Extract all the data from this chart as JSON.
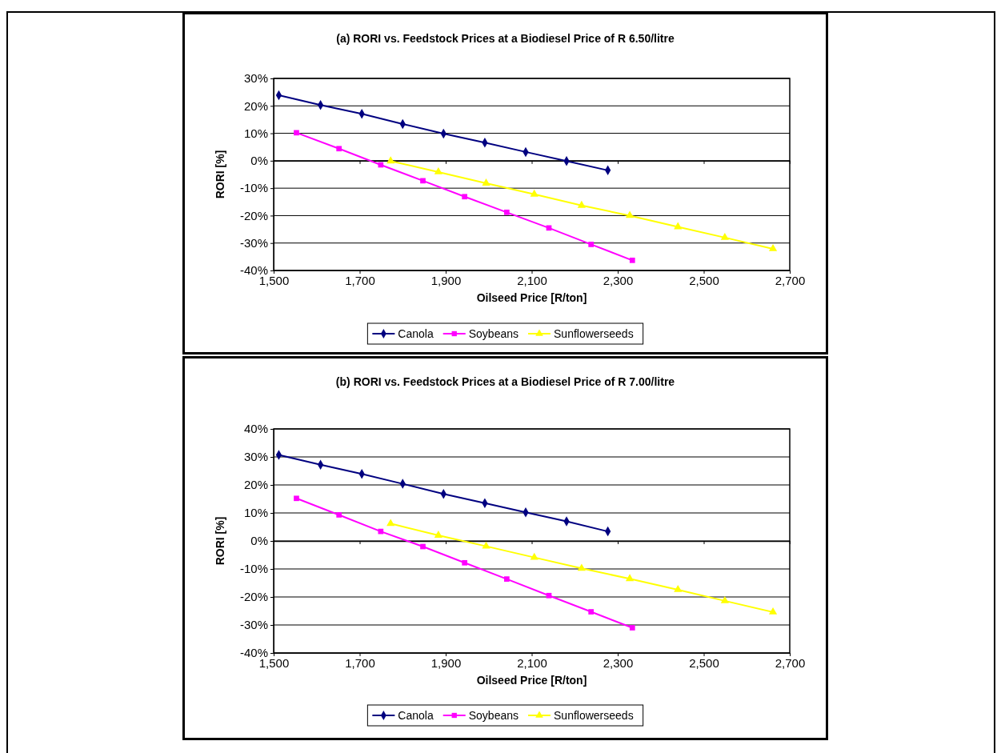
{
  "chart_data": [
    {
      "type": "line",
      "title": "(a) RORI vs. Feedstock Prices at a Biodiesel Price of R 6.50/litre",
      "xlabel": "Oilseed Price [R/ton]",
      "ylabel": "RORI [%]",
      "xlim": [
        1500,
        2700
      ],
      "xticks": [
        {
          "value": 1500,
          "label": "1,500"
        },
        {
          "value": 1700,
          "label": "1,700"
        },
        {
          "value": 1900,
          "label": "1,900"
        },
        {
          "value": 2100,
          "label": "2,100"
        },
        {
          "value": 2300,
          "label": "2,300"
        },
        {
          "value": 2500,
          "label": "2,500"
        },
        {
          "value": 2700,
          "label": "2,700"
        }
      ],
      "ylim": [
        -40,
        30
      ],
      "yticks": [
        {
          "value": -40,
          "label": "-40%"
        },
        {
          "value": -30,
          "label": "-30%"
        },
        {
          "value": -20,
          "label": "-20%"
        },
        {
          "value": -10,
          "label": "-10%"
        },
        {
          "value": 0,
          "label": "0%"
        },
        {
          "value": 10,
          "label": "10%"
        },
        {
          "value": 20,
          "label": "20%"
        },
        {
          "value": 30,
          "label": "30%"
        }
      ],
      "grid": "y",
      "legend": "bottom",
      "series": [
        {
          "name": "Canola",
          "color": "#000080",
          "marker": "diamond",
          "x": [
            1512,
            1609,
            1705,
            1800,
            1895,
            1991,
            2086,
            2181,
            2277
          ],
          "values": [
            23.9,
            20.3,
            17.1,
            13.4,
            9.9,
            6.6,
            3.2,
            -0.1,
            -3.5
          ]
        },
        {
          "name": "Soybeans",
          "color": "#ff00ff",
          "marker": "square",
          "x": [
            1553,
            1652,
            1749,
            1847,
            1944,
            2042,
            2140,
            2238,
            2334
          ],
          "values": [
            10.2,
            4.4,
            -1.5,
            -7.3,
            -13.1,
            -18.8,
            -24.5,
            -30.5,
            -36.3
          ]
        },
        {
          "name": "Sunflowerseeds",
          "color": "#ffff00",
          "marker": "triangle",
          "x": [
            1772,
            1883,
            1994,
            2106,
            2216,
            2328,
            2440,
            2549,
            2661
          ],
          "values": [
            -0.1,
            -4.1,
            -8.2,
            -12.2,
            -16.3,
            -20.0,
            -24.1,
            -28.0,
            -32.1
          ]
        }
      ]
    },
    {
      "type": "line",
      "title": "(b) RORI vs. Feedstock Prices at a Biodiesel Price of R 7.00/litre",
      "xlabel": "Oilseed Price [R/ton]",
      "ylabel": "RORI [%]",
      "xlim": [
        1500,
        2700
      ],
      "xticks": [
        {
          "value": 1500,
          "label": "1,500"
        },
        {
          "value": 1700,
          "label": "1,700"
        },
        {
          "value": 1900,
          "label": "1,900"
        },
        {
          "value": 2100,
          "label": "2,100"
        },
        {
          "value": 2300,
          "label": "2,300"
        },
        {
          "value": 2500,
          "label": "2,500"
        },
        {
          "value": 2700,
          "label": "2,700"
        }
      ],
      "ylim": [
        -40,
        40
      ],
      "yticks": [
        {
          "value": -40,
          "label": "-40%"
        },
        {
          "value": -30,
          "label": "-30%"
        },
        {
          "value": -20,
          "label": "-20%"
        },
        {
          "value": -10,
          "label": "-10%"
        },
        {
          "value": 0,
          "label": "0%"
        },
        {
          "value": 10,
          "label": "10%"
        },
        {
          "value": 20,
          "label": "20%"
        },
        {
          "value": 30,
          "label": "30%"
        },
        {
          "value": 40,
          "label": "40%"
        }
      ],
      "grid": "y",
      "legend": "bottom",
      "series": [
        {
          "name": "Canola",
          "color": "#000080",
          "marker": "diamond",
          "x": [
            1512,
            1609,
            1705,
            1800,
            1895,
            1991,
            2086,
            2181,
            2277
          ],
          "values": [
            30.7,
            27.2,
            23.9,
            20.4,
            16.8,
            13.5,
            10.2,
            7.0,
            3.4
          ]
        },
        {
          "name": "Soybeans",
          "color": "#ff00ff",
          "marker": "square",
          "x": [
            1553,
            1652,
            1749,
            1847,
            1944,
            2042,
            2140,
            2238,
            2334
          ],
          "values": [
            15.2,
            9.3,
            3.4,
            -2.0,
            -7.8,
            -13.6,
            -19.5,
            -25.3,
            -31.0
          ]
        },
        {
          "name": "Sunflowerseeds",
          "color": "#ffff00",
          "marker": "triangle",
          "x": [
            1772,
            1883,
            1994,
            2106,
            2216,
            2328,
            2440,
            2549,
            2661
          ],
          "values": [
            6.2,
            2.0,
            -1.9,
            -5.9,
            -9.8,
            -13.5,
            -17.4,
            -21.4,
            -25.4
          ]
        }
      ]
    }
  ]
}
